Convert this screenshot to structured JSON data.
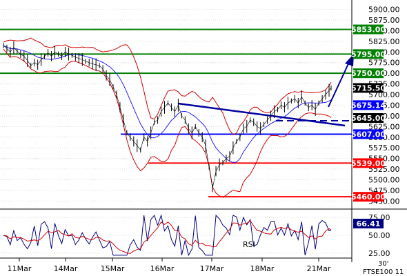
{
  "chart_data": {
    "type": "line",
    "instrument_label": "FTSE100",
    "timeframe_label": "30'",
    "day_labels": [
      "11Mar",
      "14Mar",
      "15Mar",
      "16Mar",
      "17Mar",
      "18Mar",
      "21Mar"
    ],
    "price_axis": {
      "ticks": [
        "5900.00",
        "5875.00",
        "5850.00",
        "5825.00",
        "5800.00",
        "5775.00",
        "5750.00",
        "5725.00",
        "5700.00",
        "5675.00",
        "5650.00",
        "5625.00",
        "5600.00",
        "5575.00",
        "5550.00",
        "5525.00",
        "5500.00",
        "5475.00",
        "5450.00"
      ],
      "ylim": [
        5436,
        5922
      ]
    },
    "horizontal_levels": [
      {
        "value": 5853.0,
        "label": "5853.00",
        "color": "#008000"
      },
      {
        "value": 5795.0,
        "label": "5795.00",
        "color": "#008000"
      },
      {
        "value": 5750.0,
        "label": "5750.00",
        "color": "#008000"
      },
      {
        "value": 5607.0,
        "label": "5607.00",
        "color": "#0000ff"
      },
      {
        "value": 5539.0,
        "label": "5539.00",
        "color": "#ff0000"
      },
      {
        "value": 5460.0,
        "label": "5460.00",
        "color": "#ff0000"
      }
    ],
    "marker_labels": [
      {
        "value": 5715.5,
        "label": "5715.50",
        "color": "#000000"
      },
      {
        "value": 5675.14,
        "label": "5675.14",
        "color": "#0000ff"
      },
      {
        "value": 5645.0,
        "label": "5645.00",
        "color": "#000000"
      }
    ],
    "price_series": [
      [
        0,
        5815
      ],
      [
        5,
        5808
      ],
      [
        10,
        5800
      ],
      [
        15,
        5810
      ],
      [
        20,
        5802
      ],
      [
        25,
        5795
      ],
      [
        30,
        5790
      ],
      [
        35,
        5780
      ],
      [
        40,
        5768
      ],
      [
        45,
        5775
      ],
      [
        50,
        5770
      ],
      [
        55,
        5782
      ],
      [
        60,
        5790
      ],
      [
        65,
        5798
      ],
      [
        70,
        5790
      ],
      [
        75,
        5800
      ],
      [
        80,
        5795
      ],
      [
        85,
        5790
      ],
      [
        90,
        5800
      ],
      [
        95,
        5795
      ],
      [
        100,
        5792
      ],
      [
        105,
        5788
      ],
      [
        110,
        5785
      ],
      [
        115,
        5782
      ],
      [
        120,
        5778
      ],
      [
        125,
        5775
      ],
      [
        130,
        5772
      ],
      [
        135,
        5770
      ],
      [
        140,
        5768
      ],
      [
        145,
        5760
      ],
      [
        150,
        5745
      ],
      [
        155,
        5735
      ],
      [
        160,
        5718
      ],
      [
        165,
        5700
      ],
      [
        170,
        5670
      ],
      [
        175,
        5640
      ],
      [
        180,
        5610
      ],
      [
        185,
        5600
      ],
      [
        190,
        5590
      ],
      [
        195,
        5580
      ],
      [
        200,
        5570
      ],
      [
        205,
        5600
      ],
      [
        210,
        5590
      ],
      [
        215,
        5610
      ],
      [
        220,
        5635
      ],
      [
        225,
        5640
      ],
      [
        230,
        5660
      ],
      [
        235,
        5670
      ],
      [
        240,
        5680
      ],
      [
        245,
        5670
      ],
      [
        250,
        5660
      ],
      [
        255,
        5675
      ],
      [
        260,
        5650
      ],
      [
        265,
        5640
      ],
      [
        270,
        5620
      ],
      [
        275,
        5610
      ],
      [
        280,
        5625
      ],
      [
        285,
        5610
      ],
      [
        290,
        5600
      ],
      [
        295,
        5580
      ],
      [
        300,
        5530
      ],
      [
        305,
        5480
      ],
      [
        310,
        5520
      ],
      [
        315,
        5535
      ],
      [
        320,
        5540
      ],
      [
        325,
        5550
      ],
      [
        330,
        5555
      ],
      [
        335,
        5575
      ],
      [
        340,
        5590
      ],
      [
        345,
        5600
      ],
      [
        350,
        5620
      ],
      [
        355,
        5625
      ],
      [
        360,
        5640
      ],
      [
        365,
        5635
      ],
      [
        370,
        5625
      ],
      [
        375,
        5620
      ],
      [
        380,
        5630
      ],
      [
        385,
        5640
      ],
      [
        390,
        5650
      ],
      [
        395,
        5660
      ],
      [
        400,
        5665
      ],
      [
        405,
        5675
      ],
      [
        410,
        5670
      ],
      [
        415,
        5680
      ],
      [
        420,
        5685
      ],
      [
        425,
        5690
      ],
      [
        430,
        5680
      ],
      [
        435,
        5695
      ],
      [
        440,
        5680
      ],
      [
        445,
        5670
      ],
      [
        450,
        5675
      ],
      [
        455,
        5665
      ],
      [
        460,
        5680
      ],
      [
        465,
        5690
      ],
      [
        470,
        5700
      ],
      [
        475,
        5710
      ],
      [
        478,
        5715.5
      ]
    ],
    "indicators": [
      {
        "name": "RSI",
        "ylim": [
          20,
          80
        ],
        "ticks": [
          "75.00",
          "50.00",
          "25.00"
        ],
        "last_label": "66.41"
      }
    ]
  }
}
